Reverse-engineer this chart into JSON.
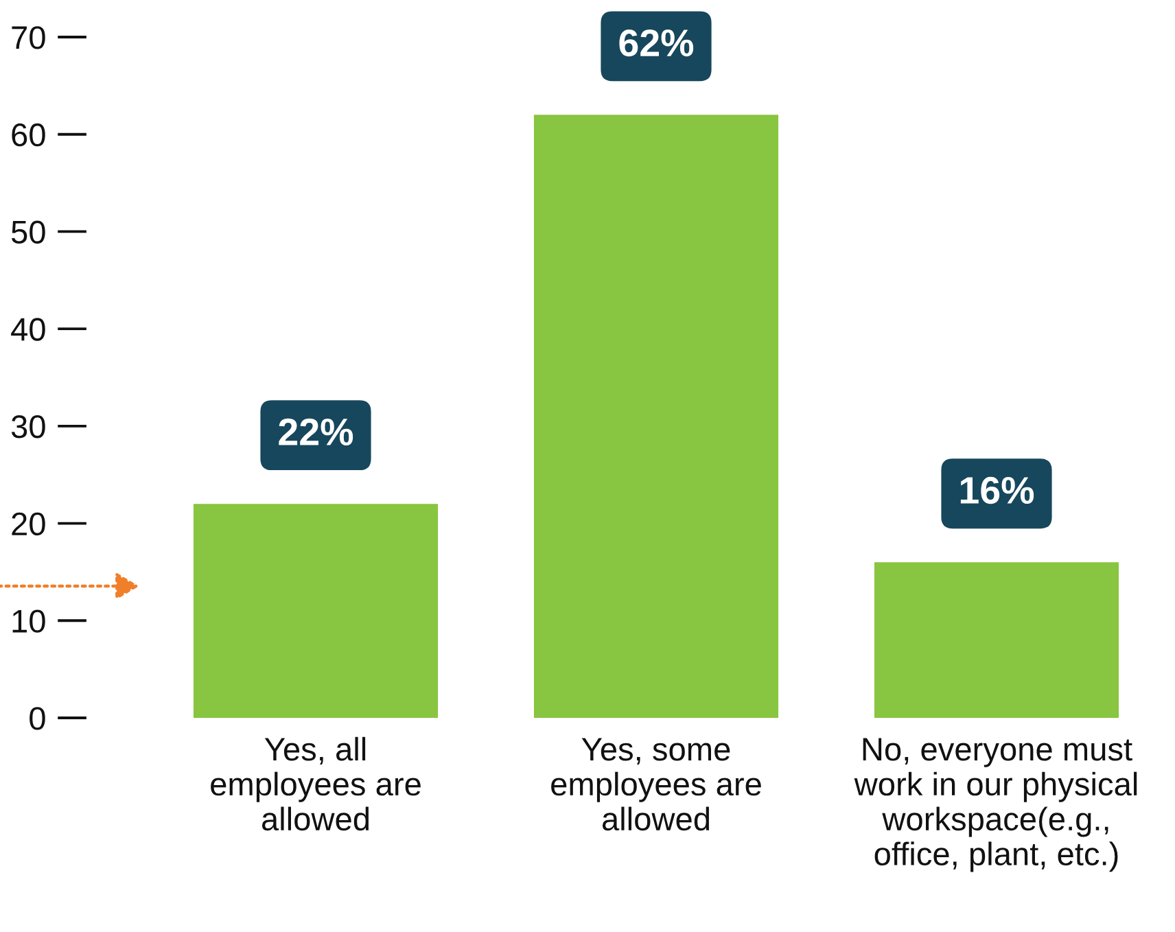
{
  "chart_data": {
    "type": "bar",
    "categories": [
      "Yes, all\nemployees are\nallowed",
      "Yes, some\nemployees are\nallowed",
      "No, everyone must\nwork in our physical\nworkspace(e.g.,\noffice, plant, etc.)"
    ],
    "values": [
      22,
      62,
      16
    ],
    "value_labels": [
      "22%",
      "62%",
      "16%"
    ],
    "color": "#88c540",
    "ylim": [
      0,
      70
    ],
    "yticks": [
      0,
      10,
      20,
      30,
      40,
      50,
      60,
      70
    ],
    "grid": false,
    "legend": false
  }
}
